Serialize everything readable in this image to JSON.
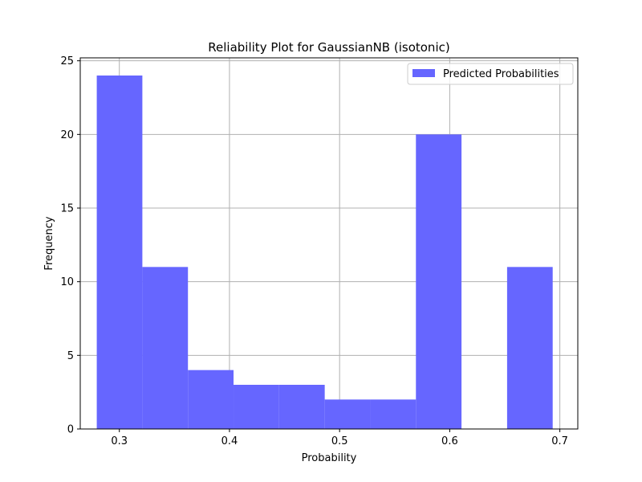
{
  "chart_data": {
    "type": "bar",
    "title": "Reliability Plot for GaussianNB (isotonic)",
    "xlabel": "Probability",
    "ylabel": "Frequency",
    "xlim": [
      0.2645,
      0.7163
    ],
    "ylim": [
      0,
      25.2
    ],
    "xticks": [
      0.3,
      0.4,
      0.5,
      0.6,
      0.7
    ],
    "xtick_labels": [
      "0.3",
      "0.4",
      "0.5",
      "0.6",
      "0.7"
    ],
    "yticks": [
      0,
      5,
      10,
      15,
      20,
      25
    ],
    "ytick_labels": [
      "0",
      "5",
      "10",
      "15",
      "20",
      "25"
    ],
    "grid": true,
    "legend_position": "top-right",
    "bin_edges": [
      0.2795,
      0.3209,
      0.3623,
      0.4037,
      0.4451,
      0.4865,
      0.5279,
      0.5693,
      0.6107,
      0.6521,
      0.6935
    ],
    "series": [
      {
        "name": "Predicted Probabilities",
        "color": "#6666ff",
        "values": [
          24,
          11,
          4,
          3,
          3,
          2,
          2,
          20,
          0,
          11
        ]
      }
    ]
  }
}
